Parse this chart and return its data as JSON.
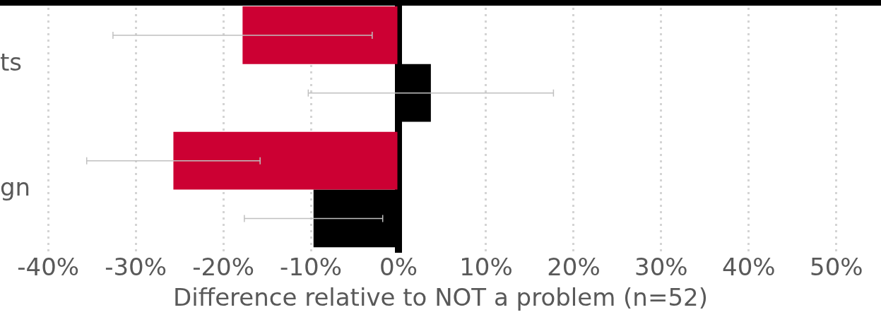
{
  "chart_data": {
    "type": "bar",
    "orientation": "horizontal",
    "categories": [
      "ts",
      "gn"
    ],
    "series": [
      {
        "color": "#cc0033",
        "values": [
          -17.8,
          -25.7
        ],
        "errors": [
          [
            -32.6,
            -3.0
          ],
          [
            -35.6,
            -15.8
          ]
        ]
      },
      {
        "color": "#000000",
        "values": [
          3.7,
          -9.7
        ],
        "errors": [
          [
            -10.3,
            17.7
          ],
          [
            -17.6,
            -1.8
          ]
        ]
      }
    ],
    "xlabel": "Difference relative to NOT a problem (n=52)",
    "xlim": [
      -45.5,
      55.1
    ],
    "xticks": [
      {
        "value": -40,
        "label": "-40%"
      },
      {
        "value": -30,
        "label": "-30%"
      },
      {
        "value": -20,
        "label": "-20%"
      },
      {
        "value": -10,
        "label": "-10%"
      },
      {
        "value": 0,
        "label": "0%"
      },
      {
        "value": 10,
        "label": "10%"
      },
      {
        "value": 20,
        "label": "20%"
      },
      {
        "value": 30,
        "label": "30%"
      },
      {
        "value": 40,
        "label": "40%"
      },
      {
        "value": 50,
        "label": "50%"
      }
    ],
    "grid": "x"
  }
}
